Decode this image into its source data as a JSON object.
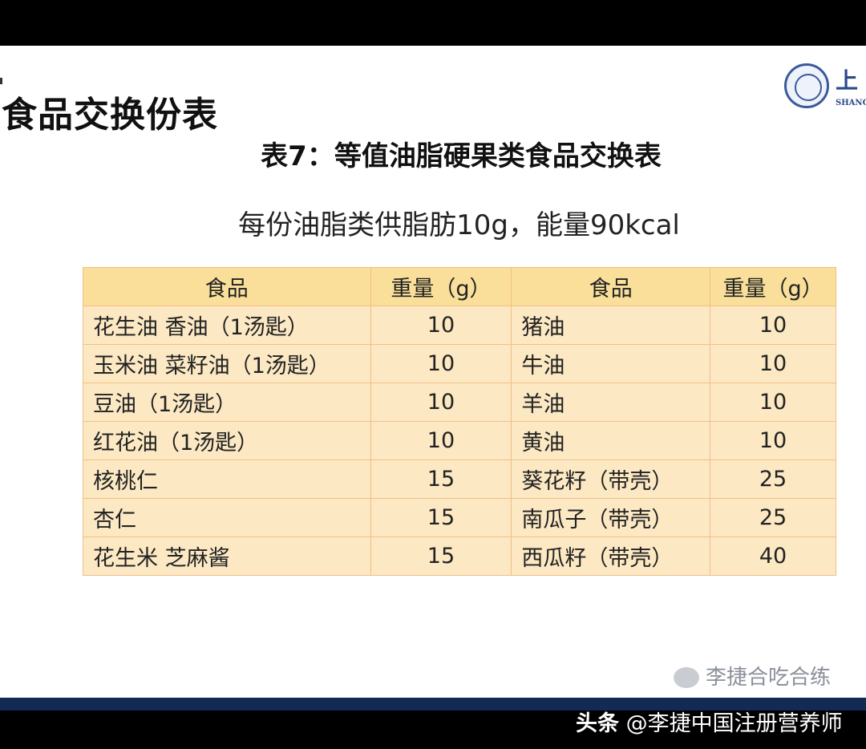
{
  "slide": {
    "page_title": "食品交换份表",
    "logo": {
      "cn": "上",
      "en": "SHANGH"
    },
    "subtitle": "表7：等值油脂硬果类食品交换表",
    "note": "每份油脂类供脂肪10g，能量90kcal"
  },
  "table": {
    "headers": [
      "食品",
      "重量（g）",
      "食品",
      "重量（g）"
    ],
    "rows": [
      [
        "花生油 香油（1汤匙）",
        "10",
        "猪油",
        "10"
      ],
      [
        "玉米油 菜籽油（1汤匙）",
        "10",
        "牛油",
        "10"
      ],
      [
        "豆油（1汤匙）",
        "10",
        "羊油",
        "10"
      ],
      [
        "红花油（1汤匙）",
        "10",
        "黄油",
        "10"
      ],
      [
        "核桃仁",
        "15",
        "葵花籽（带壳）",
        "25"
      ],
      [
        "杏仁",
        "15",
        "南瓜子（带壳）",
        "25"
      ],
      [
        "花生米 芝麻酱",
        "15",
        "西瓜籽（带壳）",
        "40"
      ]
    ]
  },
  "watermark": {
    "source": "头条",
    "author": "@李捷中国注册营养师",
    "overlay": "李捷合吃合练"
  },
  "colors": {
    "header_bg": "#f9df9a",
    "cell_bg": "#fce9c4",
    "border": "#f0bf86",
    "band": "#132a55"
  }
}
